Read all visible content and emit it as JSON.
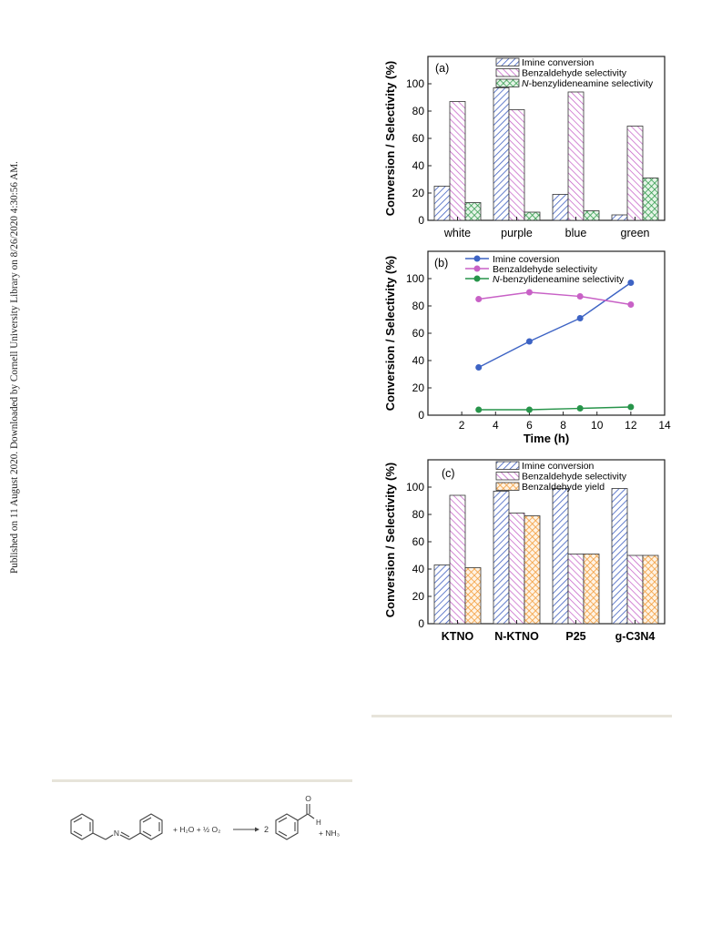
{
  "sidebar_note": "Published on 11 August 2020. Downloaded by Cornell University Library on 8/26/2020 4:30:56 AM.",
  "colors": {
    "blue": "#3f5fc0",
    "magenta": "#c259c4",
    "green": "#2f9a4a",
    "orange": "#f29a35",
    "line_blue": "#3d63c4",
    "line_magenta": "#c861c6",
    "line_green": "#27944a"
  },
  "chart_data": [
    {
      "type": "bar",
      "panel_label": "(a)",
      "ylabel": "Conversion / Selectivity (%)",
      "ylim": [
        0,
        120
      ],
      "yticks": [
        "0",
        "20",
        "40",
        "60",
        "80",
        "100"
      ],
      "categories": [
        "white",
        "purple",
        "blue",
        "green"
      ],
      "legend_position": "top-right",
      "series": [
        {
          "name": "Imine conversion",
          "name_italic": "",
          "name_rest": "",
          "values": [
            25,
            97,
            19,
            4
          ],
          "pattern": "hatch-blue"
        },
        {
          "name": "Benzaldehyde selectivity",
          "name_italic": "",
          "name_rest": "",
          "values": [
            87,
            81,
            94,
            69
          ],
          "pattern": "hatch-magenta"
        },
        {
          "name": "",
          "name_italic": "N",
          "name_rest": "-benzylideneamine selectivity",
          "values": [
            13,
            6,
            7,
            31
          ],
          "pattern": "cross-green"
        }
      ]
    },
    {
      "type": "line",
      "panel_label": "(b)",
      "ylabel": "Conversion / Selectivity (%)",
      "xlabel": "Time (h)",
      "xlim": [
        0,
        14
      ],
      "ylim": [
        0,
        120
      ],
      "xticks": [
        "2",
        "4",
        "6",
        "8",
        "10",
        "12",
        "14"
      ],
      "yticks": [
        "0",
        "20",
        "40",
        "60",
        "80",
        "100"
      ],
      "legend_position": "top-right",
      "x": [
        3,
        6,
        9,
        12
      ],
      "series": [
        {
          "name": "Imine coversion",
          "name_italic": "",
          "name_rest": "",
          "values": [
            35,
            54,
            71,
            97
          ],
          "color_key": "line_blue"
        },
        {
          "name": "Benzaldehyde selectivity",
          "name_italic": "",
          "name_rest": "",
          "values": [
            85,
            90,
            87,
            81
          ],
          "color_key": "line_magenta"
        },
        {
          "name": "",
          "name_italic": "N",
          "name_rest": "-benzylideneamine selectivity",
          "values": [
            4,
            4,
            5,
            6
          ],
          "color_key": "line_green"
        }
      ]
    },
    {
      "type": "bar",
      "panel_label": "(c)",
      "ylabel": "Conversion / Selectivity (%)",
      "ylim": [
        0,
        120
      ],
      "yticks": [
        "0",
        "20",
        "40",
        "60",
        "80",
        "100"
      ],
      "categories": [
        "KTNO",
        "N-KTNO",
        "P25",
        "g-C3N4"
      ],
      "legend_position": "top-right",
      "series": [
        {
          "name": "Imine conversion",
          "name_italic": "",
          "name_rest": "",
          "values": [
            43,
            97,
            99,
            99
          ],
          "pattern": "hatch-blue"
        },
        {
          "name": "Benzaldehyde selectivity",
          "name_italic": "",
          "name_rest": "",
          "values": [
            94,
            81,
            51,
            50
          ],
          "pattern": "hatch-magenta"
        },
        {
          "name": "Benzaldehyde yield",
          "name_italic": "",
          "name_rest": "",
          "values": [
            41,
            79,
            51,
            50
          ],
          "pattern": "cross-orange"
        }
      ]
    }
  ],
  "scheme": {
    "reagents": "+ H₂O  + ½ O₂",
    "coefficient": "2",
    "amine_atom": "N",
    "oxygen_atom": "O",
    "hydrogen_atom": "H",
    "byproduct": "+ NH₃"
  }
}
